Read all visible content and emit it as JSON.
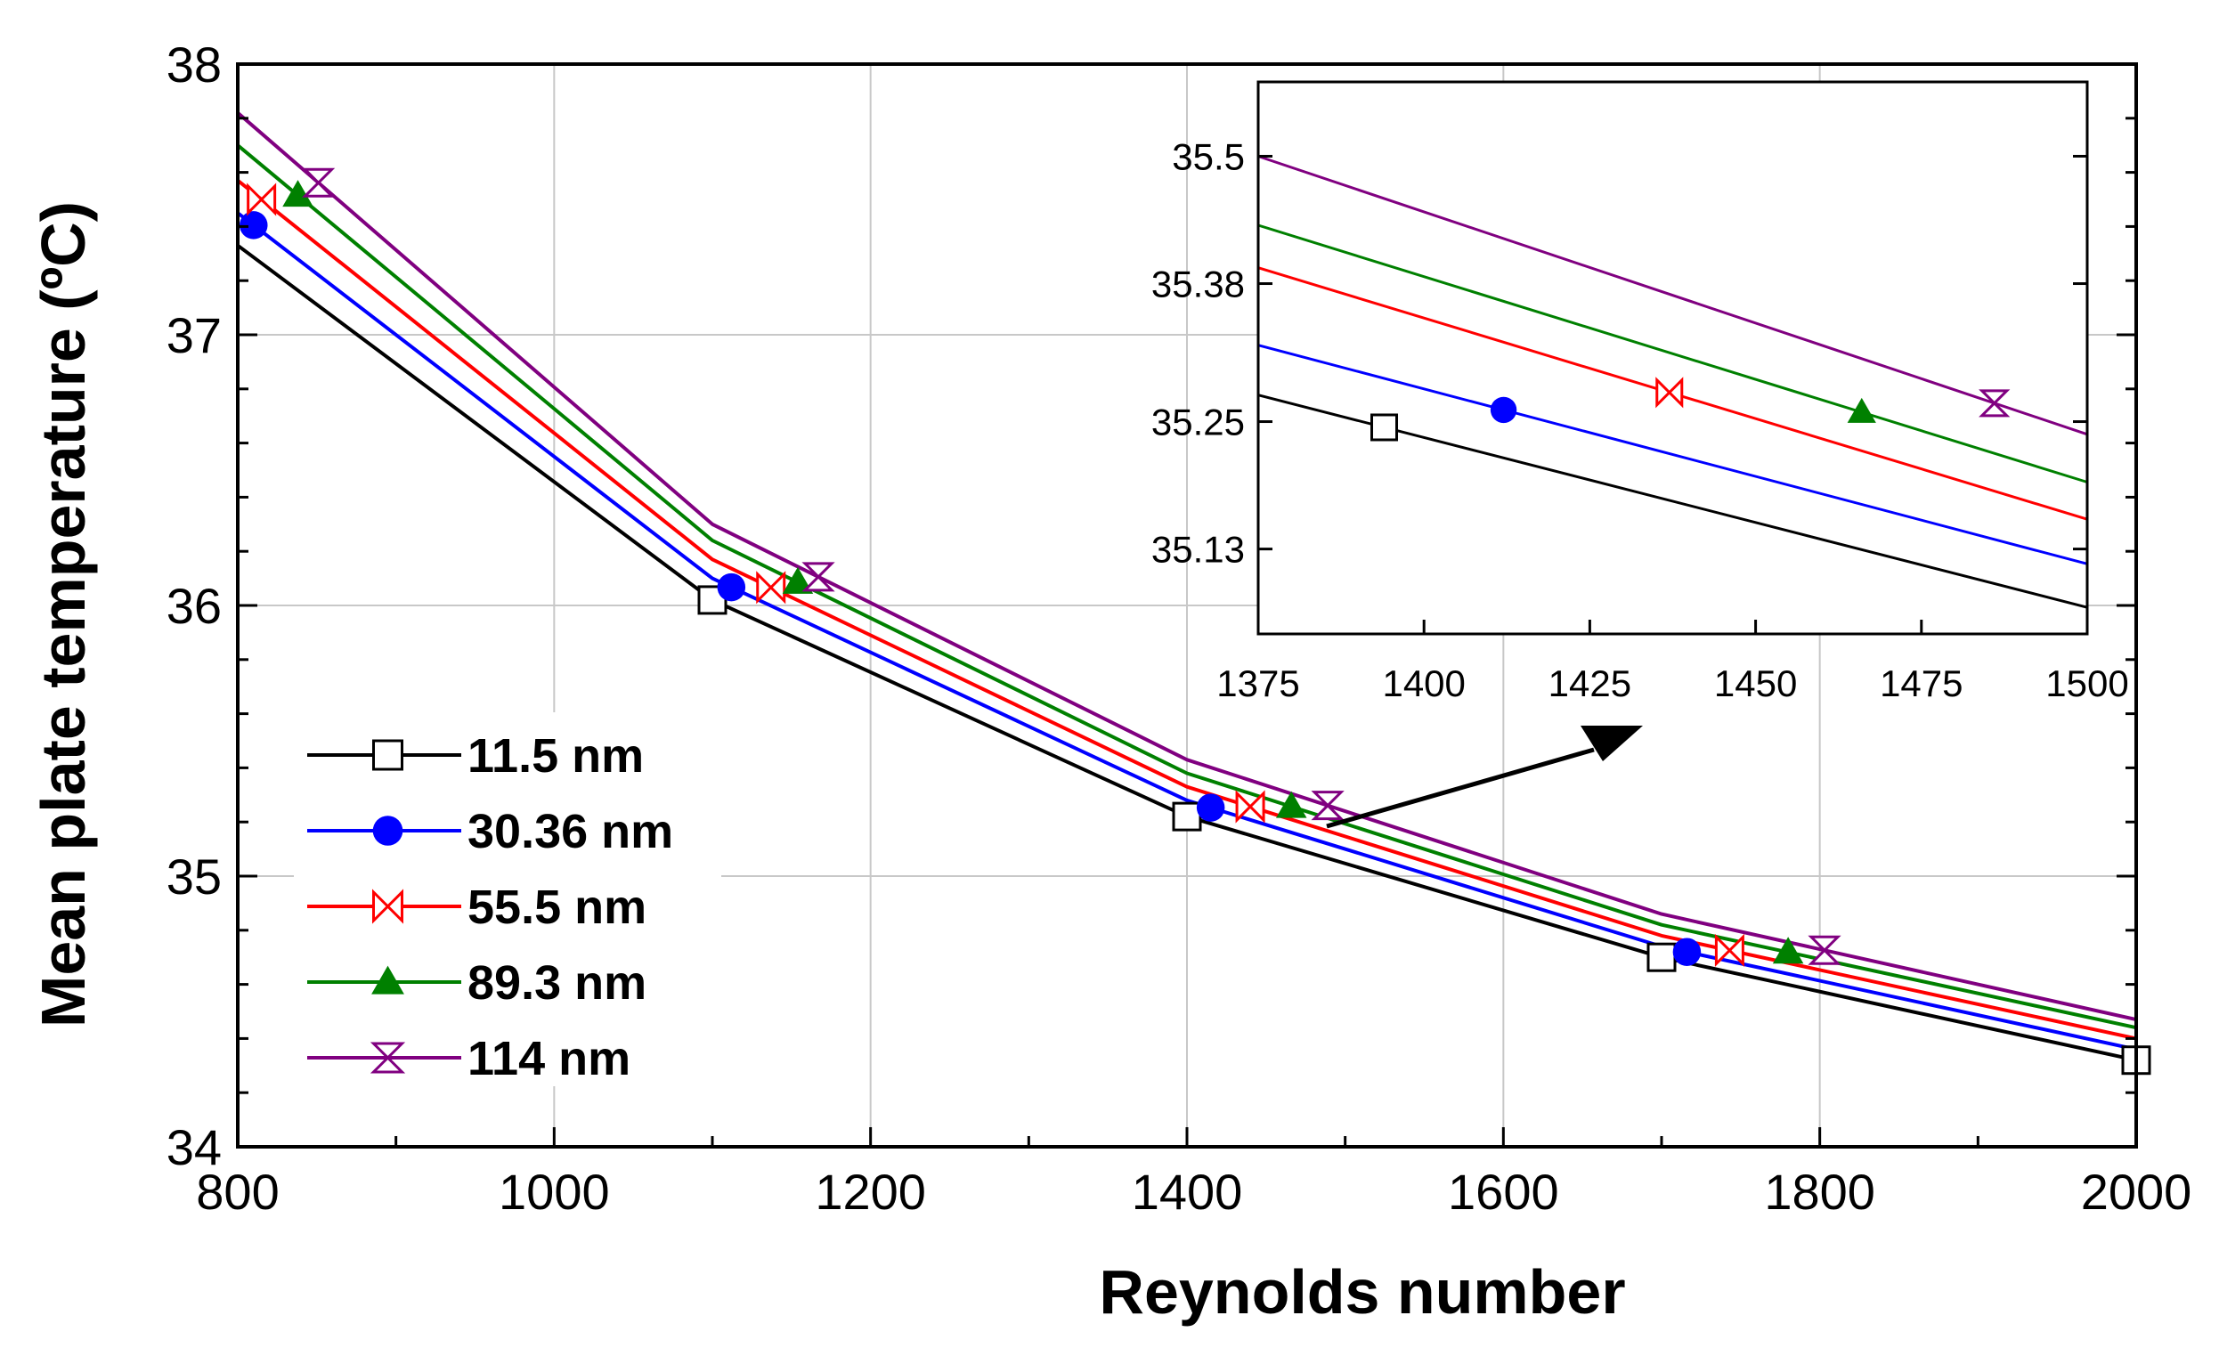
{
  "chart_data": [
    {
      "id": "main",
      "type": "line",
      "xlabel": "Reynolds number",
      "ylabel": "Mean plate temperature (ºC)",
      "xlim": [
        800,
        2000
      ],
      "ylim": [
        34,
        38
      ],
      "xticks": [
        "800",
        "1000",
        "1200",
        "1400",
        "1600",
        "1800",
        "2000"
      ],
      "yticks": [
        "34",
        "35",
        "36",
        "37",
        "38"
      ],
      "grid": true,
      "legend_position": "bottom-left",
      "series": [
        {
          "name": "11.5 nm",
          "color": "#000000",
          "marker": "open-square",
          "points": [
            [
              800,
              37.33
            ],
            [
              1100,
              36.02
            ],
            [
              1400,
              35.22
            ],
            [
              1700,
              34.7
            ],
            [
              2000,
              34.32
            ]
          ],
          "marker_x": [
            1100,
            1400,
            1700,
            2000
          ]
        },
        {
          "name": "30.36 nm",
          "color": "#0000ff",
          "marker": "filled-circle",
          "points": [
            [
              800,
              37.45
            ],
            [
              1100,
              36.1
            ],
            [
              1400,
              35.28
            ],
            [
              1700,
              34.74
            ],
            [
              2000,
              34.36
            ]
          ],
          "marker_x": [
            810,
            1112,
            1415,
            1716
          ]
        },
        {
          "name": "55.5 nm",
          "color": "#ff0000",
          "marker": "bowtie",
          "points": [
            [
              800,
              37.57
            ],
            [
              1100,
              36.17
            ],
            [
              1400,
              35.33
            ],
            [
              1700,
              34.78
            ],
            [
              2000,
              34.4
            ]
          ],
          "marker_x": [
            815,
            1137,
            1440,
            1743
          ]
        },
        {
          "name": "89.3 nm",
          "color": "#008000",
          "marker": "filled-triangle",
          "points": [
            [
              800,
              37.7
            ],
            [
              1100,
              36.24
            ],
            [
              1400,
              35.38
            ],
            [
              1700,
              34.82
            ],
            [
              2000,
              34.44
            ]
          ],
          "marker_x": [
            838,
            1154,
            1466,
            1780
          ]
        },
        {
          "name": "114 nm",
          "color": "#800080",
          "marker": "hourglass",
          "points": [
            [
              800,
              37.82
            ],
            [
              1100,
              36.3
            ],
            [
              1400,
              35.43
            ],
            [
              1700,
              34.86
            ],
            [
              2000,
              34.47
            ]
          ],
          "marker_x": [
            851,
            1167,
            1489,
            1803
          ]
        }
      ]
    },
    {
      "id": "inset",
      "type": "line",
      "xlim": [
        1375,
        1500
      ],
      "ylim": [
        35.05,
        35.57
      ],
      "xticks": [
        "1375",
        "1400",
        "1425",
        "1450",
        "1475",
        "1500"
      ],
      "ytick_values": [
        35.5,
        35.38,
        35.25,
        35.13
      ],
      "yticks": [
        "35.5",
        "35.38",
        "35.25",
        "35.13"
      ],
      "grid": false,
      "annotation": "arrow from main curves near Re 1500 to inset",
      "series": [
        {
          "name": "11.5 nm",
          "points": [
            [
              1375,
              35.275
            ],
            [
              1500,
              35.075
            ]
          ],
          "marker_x": [
            1394
          ]
        },
        {
          "name": "30.36 nm",
          "points": [
            [
              1375,
              35.322
            ],
            [
              1500,
              35.116
            ]
          ],
          "marker_x": [
            1412
          ]
        },
        {
          "name": "55.5 nm",
          "points": [
            [
              1375,
              35.395
            ],
            [
              1500,
              35.158
            ]
          ],
          "marker_x": [
            1437
          ]
        },
        {
          "name": "89.3 nm",
          "points": [
            [
              1375,
              35.435
            ],
            [
              1500,
              35.193
            ]
          ],
          "marker_x": [
            1466
          ]
        },
        {
          "name": "114 nm",
          "points": [
            [
              1375,
              35.5
            ],
            [
              1500,
              35.238
            ]
          ],
          "marker_x": [
            1486
          ]
        }
      ]
    }
  ]
}
